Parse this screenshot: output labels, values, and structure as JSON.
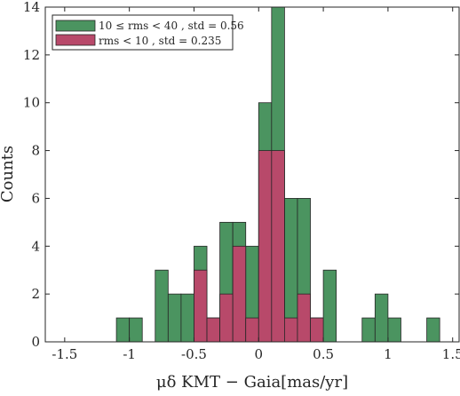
{
  "chart_data": {
    "type": "bar",
    "xlabel": "μδ KMT − Gaia[mas/yr]",
    "ylabel": "Counts",
    "xlim": [
      -1.65,
      1.55
    ],
    "ylim": [
      0,
      14
    ],
    "xticks": [
      -1.5,
      -1,
      -0.5,
      0,
      0.5,
      1,
      1.5
    ],
    "xtick_labels": [
      "-1.5",
      "-1",
      "-0.5",
      "0",
      "0.5",
      "1",
      "1.5"
    ],
    "yticks": [
      0,
      2,
      4,
      6,
      8,
      10,
      12,
      14
    ],
    "ytick_labels": [
      "0",
      "2",
      "4",
      "6",
      "8",
      "10",
      "12",
      "14"
    ],
    "bin_width": 0.1,
    "bin_centers": [
      -1.05,
      -0.95,
      -0.75,
      -0.65,
      -0.55,
      -0.45,
      -0.35,
      -0.25,
      -0.15,
      -0.05,
      0.05,
      0.15,
      0.25,
      0.35,
      0.45,
      0.55,
      0.85,
      0.95,
      1.05,
      1.35
    ],
    "legend_position": "top-left",
    "grid": false,
    "series": [
      {
        "name": "10 ≤ rms < 40 , std = 0.56",
        "color": "#4b9460",
        "values": [
          1,
          1,
          3,
          2,
          2,
          4,
          1,
          5,
          5,
          4,
          10,
          14,
          6,
          6,
          1,
          3,
          1,
          2,
          1,
          1
        ]
      },
      {
        "name": "rms < 10 , std = 0.235",
        "color": "#b8496a",
        "values": [
          0,
          0,
          0,
          0,
          0,
          3,
          1,
          2,
          4,
          1,
          8,
          8,
          1,
          2,
          1,
          0,
          0,
          0,
          0,
          0
        ]
      }
    ]
  }
}
